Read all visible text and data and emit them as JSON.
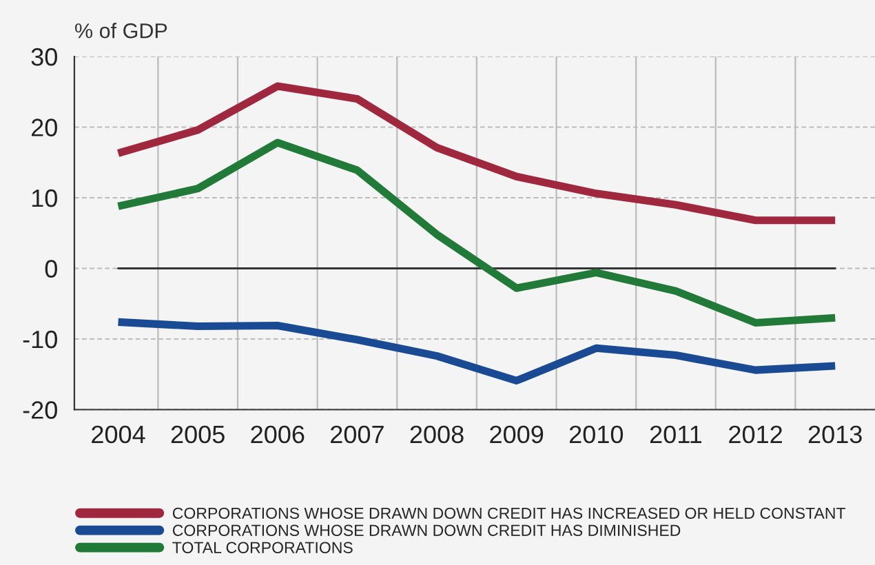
{
  "chart_data": {
    "type": "line",
    "ylabel": "% of GDP",
    "categories": [
      "2004",
      "2005",
      "2006",
      "2007",
      "2008",
      "2009",
      "2010",
      "2011",
      "2012",
      "2013"
    ],
    "series": [
      {
        "name": "CORPORATIONS WHOSE DRAWN DOWN CREDIT HAS INCREASED OR HELD CONSTANT",
        "color": "#a0283e",
        "values": [
          16.3,
          19.6,
          25.8,
          24.0,
          17.1,
          13.0,
          10.6,
          9.0,
          6.8,
          6.8
        ]
      },
      {
        "name": "CORPORATIONS WHOSE DRAWN DOWN CREDIT HAS DIMINISHED",
        "color": "#1a4a94",
        "values": [
          -7.6,
          -8.2,
          -8.1,
          -10.1,
          -12.4,
          -15.9,
          -11.3,
          -12.3,
          -14.4,
          -13.8
        ]
      },
      {
        "name": "TOTAL CORPORATIONS",
        "color": "#227a38",
        "values": [
          8.8,
          11.3,
          17.8,
          13.9,
          4.8,
          -2.8,
          -0.6,
          -3.2,
          -7.7,
          -7.0
        ]
      }
    ],
    "ylim": [
      -20,
      30
    ],
    "yticks": [
      -20,
      -10,
      0,
      10,
      20,
      30
    ],
    "ref_lines": [
      {
        "axis": "y",
        "value": 0,
        "color": "#333333",
        "line_style": "solid"
      }
    ],
    "grid": true,
    "legend": "bottom",
    "marker": "none",
    "line_style": "solid"
  }
}
